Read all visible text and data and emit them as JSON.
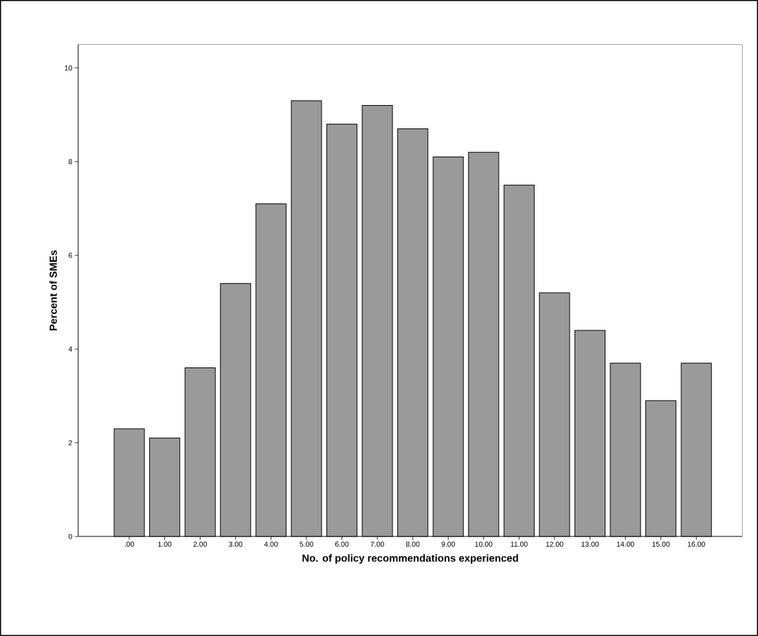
{
  "chart_data": {
    "type": "bar",
    "xlabel": "No. of policy recommendations experienced",
    "ylabel": "Percent of SMEs",
    "categories": [
      ".00",
      "1.00",
      "2.00",
      "3.00",
      "4.00",
      "5.00",
      "6.00",
      "7.00",
      "8.00",
      "9.00",
      "10.00",
      "11.00",
      "12.00",
      "13.00",
      "14.00",
      "15.00",
      "16.00"
    ],
    "values": [
      2.3,
      2.1,
      3.6,
      5.4,
      7.1,
      9.3,
      8.8,
      9.2,
      8.7,
      8.1,
      8.2,
      7.5,
      5.2,
      4.4,
      3.7,
      2.9,
      3.7
    ],
    "color": "#9a9a9a",
    "ylim": [
      0,
      10.5
    ],
    "yticks": [
      0,
      2,
      4,
      6,
      8,
      10
    ],
    "grid": false
  }
}
